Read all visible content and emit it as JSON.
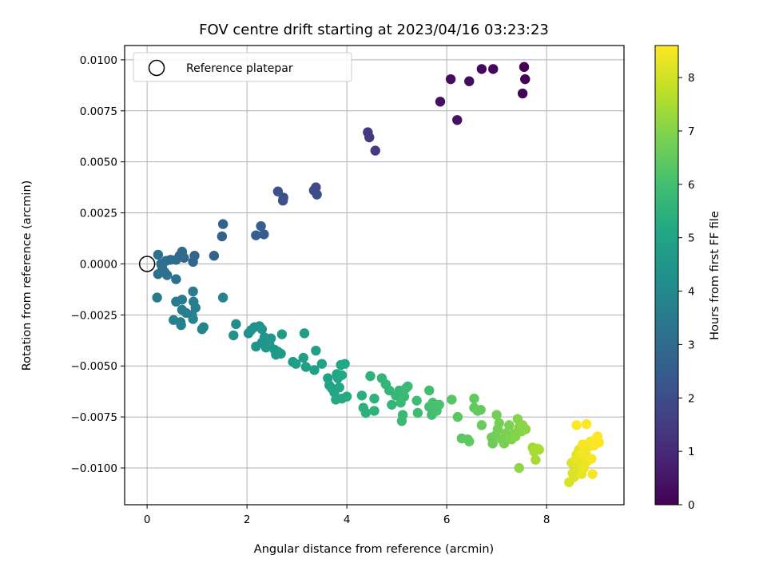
{
  "chart_data": {
    "type": "scatter",
    "title": "FOV centre drift starting at 2023/04/16 03:23:23",
    "xlabel": "Angular distance from reference (arcmin)",
    "ylabel": "Rotation from reference (arcmin)",
    "xlim": [
      -0.45,
      9.55
    ],
    "ylim": [
      -0.0118,
      0.0107
    ],
    "xticks": [
      0,
      2,
      4,
      6,
      8
    ],
    "yticks": [
      -0.01,
      -0.0075,
      -0.005,
      -0.0025,
      0,
      0.0025,
      0.005,
      0.0075,
      0.01
    ],
    "xtick_labels": [
      "0",
      "2",
      "4",
      "6",
      "8"
    ],
    "ytick_labels": [
      "−0.0100",
      "−0.0075",
      "−0.0050",
      "−0.0025",
      "0.0000",
      "0.0025",
      "0.0050",
      "0.0075",
      "0.0100"
    ],
    "grid": true,
    "legend": {
      "position": "top-left",
      "entries": [
        "Reference platepar"
      ]
    },
    "reference_point": {
      "x": 0,
      "y": 0
    },
    "colorbar": {
      "label": "Hours from first FF file",
      "colormap": "viridis",
      "range": [
        0,
        8.6
      ],
      "ticks": [
        0,
        1,
        2,
        3,
        4,
        5,
        6,
        7,
        8
      ],
      "tick_labels": [
        "0",
        "1",
        "2",
        "3",
        "4",
        "5",
        "6",
        "7",
        "8"
      ]
    },
    "points": [
      [
        7.55,
        0.00965,
        0.0
      ],
      [
        7.57,
        0.00905,
        0.05
      ],
      [
        7.52,
        0.00835,
        0.1
      ],
      [
        6.93,
        0.00955,
        0.15
      ],
      [
        6.7,
        0.00955,
        0.2
      ],
      [
        6.45,
        0.00895,
        0.25
      ],
      [
        6.08,
        0.00905,
        0.3
      ],
      [
        5.87,
        0.00795,
        0.35
      ],
      [
        6.21,
        0.00705,
        0.4
      ],
      [
        4.42,
        0.00645,
        1.4
      ],
      [
        4.45,
        0.0062,
        1.45
      ],
      [
        4.57,
        0.00555,
        1.5
      ],
      [
        3.38,
        0.00375,
        1.9
      ],
      [
        3.34,
        0.0036,
        1.95
      ],
      [
        3.4,
        0.0034,
        2.0
      ],
      [
        2.73,
        0.00325,
        2.05
      ],
      [
        2.72,
        0.0031,
        2.1
      ],
      [
        2.62,
        0.00355,
        2.15
      ],
      [
        2.34,
        0.00145,
        2.5
      ],
      [
        2.18,
        0.0014,
        2.55
      ],
      [
        2.28,
        0.00185,
        2.6
      ],
      [
        1.52,
        0.00195,
        2.65
      ],
      [
        1.5,
        0.00135,
        2.7
      ],
      [
        1.34,
        0.0004,
        2.75
      ],
      [
        0.95,
        0.0004,
        2.8
      ],
      [
        0.92,
        0.0001,
        2.85
      ],
      [
        0.74,
        0.0003,
        2.9
      ],
      [
        0.7,
        0.0006,
        2.95
      ],
      [
        0.65,
        0.0004,
        3.0
      ],
      [
        0.58,
        0.0002,
        3.0
      ],
      [
        0.47,
        0.0002,
        3.05
      ],
      [
        0.38,
        0.00015,
        3.05
      ],
      [
        0.28,
        0.0,
        3.1
      ],
      [
        0.22,
        0.00045,
        3.1
      ],
      [
        0.3,
        -0.00015,
        3.15
      ],
      [
        0.35,
        -0.0004,
        3.15
      ],
      [
        0.22,
        -0.0005,
        3.2
      ],
      [
        0.4,
        -0.00055,
        3.2
      ],
      [
        0.58,
        -0.00075,
        3.25
      ],
      [
        0.2,
        -0.00165,
        3.5
      ],
      [
        0.58,
        -0.00185,
        3.5
      ],
      [
        0.7,
        -0.00175,
        3.55
      ],
      [
        0.92,
        -0.00135,
        3.55
      ],
      [
        0.93,
        -0.00185,
        3.6
      ],
      [
        0.97,
        -0.00215,
        3.6
      ],
      [
        0.7,
        -0.00225,
        3.65
      ],
      [
        0.78,
        -0.0024,
        3.65
      ],
      [
        0.9,
        -0.0025,
        3.7
      ],
      [
        0.53,
        -0.00275,
        3.7
      ],
      [
        0.67,
        -0.00285,
        3.75
      ],
      [
        0.68,
        -0.003,
        3.75
      ],
      [
        0.92,
        -0.0027,
        3.8
      ],
      [
        1.13,
        -0.0031,
        3.8
      ],
      [
        1.1,
        -0.0032,
        3.85
      ],
      [
        1.52,
        -0.00165,
        3.85
      ],
      [
        1.78,
        -0.00295,
        4.2
      ],
      [
        1.73,
        -0.0035,
        4.25
      ],
      [
        2.03,
        -0.0034,
        4.3
      ],
      [
        2.08,
        -0.00325,
        4.3
      ],
      [
        2.15,
        -0.0031,
        4.35
      ],
      [
        2.25,
        -0.00305,
        4.35
      ],
      [
        2.3,
        -0.0032,
        4.4
      ],
      [
        2.35,
        -0.0036,
        4.4
      ],
      [
        2.18,
        -0.00405,
        4.45
      ],
      [
        2.3,
        -0.00385,
        4.45
      ],
      [
        2.38,
        -0.0041,
        4.5
      ],
      [
        2.48,
        -0.00365,
        4.5
      ],
      [
        2.45,
        -0.00395,
        4.55
      ],
      [
        2.55,
        -0.0042,
        4.55
      ],
      [
        2.62,
        -0.0043,
        4.6
      ],
      [
        2.58,
        -0.00445,
        4.6
      ],
      [
        2.68,
        -0.0044,
        4.65
      ],
      [
        2.7,
        -0.00345,
        4.65
      ],
      [
        2.92,
        -0.0048,
        4.7
      ],
      [
        2.98,
        -0.0049,
        4.75
      ],
      [
        3.15,
        -0.0034,
        4.75
      ],
      [
        3.13,
        -0.0046,
        4.8
      ],
      [
        3.18,
        -0.00505,
        4.8
      ],
      [
        3.38,
        -0.00425,
        4.85
      ],
      [
        3.35,
        -0.0052,
        4.85
      ],
      [
        3.5,
        -0.0049,
        4.9
      ],
      [
        3.62,
        -0.0056,
        4.9
      ],
      [
        3.65,
        -0.00595,
        4.95
      ],
      [
        3.7,
        -0.0061,
        5.0
      ],
      [
        3.75,
        -0.0063,
        5.0
      ],
      [
        3.8,
        -0.0054,
        5.05
      ],
      [
        3.82,
        -0.0056,
        5.05
      ],
      [
        3.88,
        -0.00495,
        5.1
      ],
      [
        3.85,
        -0.00605,
        5.1
      ],
      [
        3.9,
        -0.00545,
        5.15
      ],
      [
        3.96,
        -0.0049,
        5.15
      ],
      [
        3.78,
        -0.00665,
        5.2
      ],
      [
        3.9,
        -0.0066,
        5.2
      ],
      [
        4.0,
        -0.0065,
        5.25
      ],
      [
        4.3,
        -0.00645,
        5.4
      ],
      [
        4.33,
        -0.00705,
        5.45
      ],
      [
        4.38,
        -0.0073,
        5.45
      ],
      [
        4.47,
        -0.0055,
        5.5
      ],
      [
        4.55,
        -0.0066,
        5.5
      ],
      [
        4.55,
        -0.0072,
        5.55
      ],
      [
        4.7,
        -0.0056,
        5.6
      ],
      [
        4.78,
        -0.0059,
        5.6
      ],
      [
        4.85,
        -0.0062,
        5.65
      ],
      [
        4.9,
        -0.0069,
        5.65
      ],
      [
        4.98,
        -0.00645,
        5.7
      ],
      [
        5.05,
        -0.0062,
        5.7
      ],
      [
        5.08,
        -0.0068,
        5.75
      ],
      [
        5.12,
        -0.0074,
        5.75
      ],
      [
        5.1,
        -0.0077,
        5.8
      ],
      [
        5.15,
        -0.0065,
        5.8
      ],
      [
        5.18,
        -0.0061,
        5.85
      ],
      [
        5.22,
        -0.006,
        5.85
      ],
      [
        5.42,
        -0.0073,
        5.9
      ],
      [
        5.4,
        -0.0067,
        5.9
      ],
      [
        5.65,
        -0.0062,
        5.95
      ],
      [
        5.65,
        -0.007,
        6.0
      ],
      [
        5.7,
        -0.0074,
        6.0
      ],
      [
        5.72,
        -0.0068,
        6.05
      ],
      [
        5.8,
        -0.0072,
        6.05
      ],
      [
        5.85,
        -0.0069,
        6.1
      ],
      [
        6.1,
        -0.00665,
        6.3
      ],
      [
        6.22,
        -0.0075,
        6.35
      ],
      [
        6.3,
        -0.00855,
        6.4
      ],
      [
        6.42,
        -0.0086,
        6.45
      ],
      [
        6.45,
        -0.0087,
        6.45
      ],
      [
        6.55,
        -0.0066,
        6.5
      ],
      [
        6.55,
        -0.00705,
        6.5
      ],
      [
        6.62,
        -0.0072,
        6.55
      ],
      [
        6.68,
        -0.00715,
        6.55
      ],
      [
        6.7,
        -0.0079,
        6.6
      ],
      [
        6.9,
        -0.0085,
        6.7
      ],
      [
        6.92,
        -0.0088,
        6.7
      ],
      [
        6.98,
        -0.0084,
        6.75
      ],
      [
        7.0,
        -0.0074,
        6.75
      ],
      [
        7.02,
        -0.0081,
        6.8
      ],
      [
        7.05,
        -0.0078,
        6.8
      ],
      [
        7.1,
        -0.0086,
        6.85
      ],
      [
        7.15,
        -0.0088,
        6.85
      ],
      [
        7.18,
        -0.0083,
        6.9
      ],
      [
        7.25,
        -0.0079,
        6.9
      ],
      [
        7.3,
        -0.0086,
        6.95
      ],
      [
        7.35,
        -0.0083,
        6.95
      ],
      [
        7.38,
        -0.00845,
        7.0
      ],
      [
        7.42,
        -0.0076,
        7.0
      ],
      [
        7.45,
        -0.008,
        7.05
      ],
      [
        7.5,
        -0.0082,
        7.05
      ],
      [
        7.52,
        -0.0079,
        7.1
      ],
      [
        7.58,
        -0.0081,
        7.1
      ],
      [
        7.45,
        -0.01,
        7.15
      ],
      [
        7.72,
        -0.009,
        7.4
      ],
      [
        7.75,
        -0.0092,
        7.45
      ],
      [
        7.78,
        -0.0096,
        7.45
      ],
      [
        7.82,
        -0.00905,
        7.5
      ],
      [
        7.85,
        -0.0091,
        7.5
      ],
      [
        8.45,
        -0.0107,
        8.1
      ],
      [
        8.5,
        -0.00975,
        8.1
      ],
      [
        8.52,
        -0.01025,
        8.15
      ],
      [
        8.55,
        -0.01045,
        8.15
      ],
      [
        8.6,
        -0.00935,
        8.2
      ],
      [
        8.62,
        -0.01,
        8.2
      ],
      [
        8.65,
        -0.0091,
        8.25
      ],
      [
        8.68,
        -0.0096,
        8.25
      ],
      [
        8.7,
        -0.0103,
        8.3
      ],
      [
        8.72,
        -0.0099,
        8.3
      ],
      [
        8.75,
        -0.01,
        8.35
      ],
      [
        8.78,
        -0.0093,
        8.35
      ],
      [
        8.8,
        -0.0097,
        8.4
      ],
      [
        8.82,
        -0.009,
        8.4
      ],
      [
        8.85,
        -0.0088,
        8.45
      ],
      [
        8.88,
        -0.0087,
        8.45
      ],
      [
        8.9,
        -0.00955,
        8.5
      ],
      [
        8.92,
        -0.0103,
        8.5
      ],
      [
        8.95,
        -0.0089,
        8.55
      ],
      [
        8.98,
        -0.0086,
        8.55
      ],
      [
        9.02,
        -0.00845,
        8.6
      ],
      [
        9.05,
        -0.00875,
        8.6
      ],
      [
        8.8,
        -0.00785,
        8.6
      ],
      [
        8.6,
        -0.0079,
        8.6
      ],
      [
        8.72,
        -0.00885,
        8.5
      ],
      [
        8.68,
        -0.00935,
        8.45
      ],
      [
        8.58,
        -0.0096,
        8.3
      ]
    ]
  }
}
